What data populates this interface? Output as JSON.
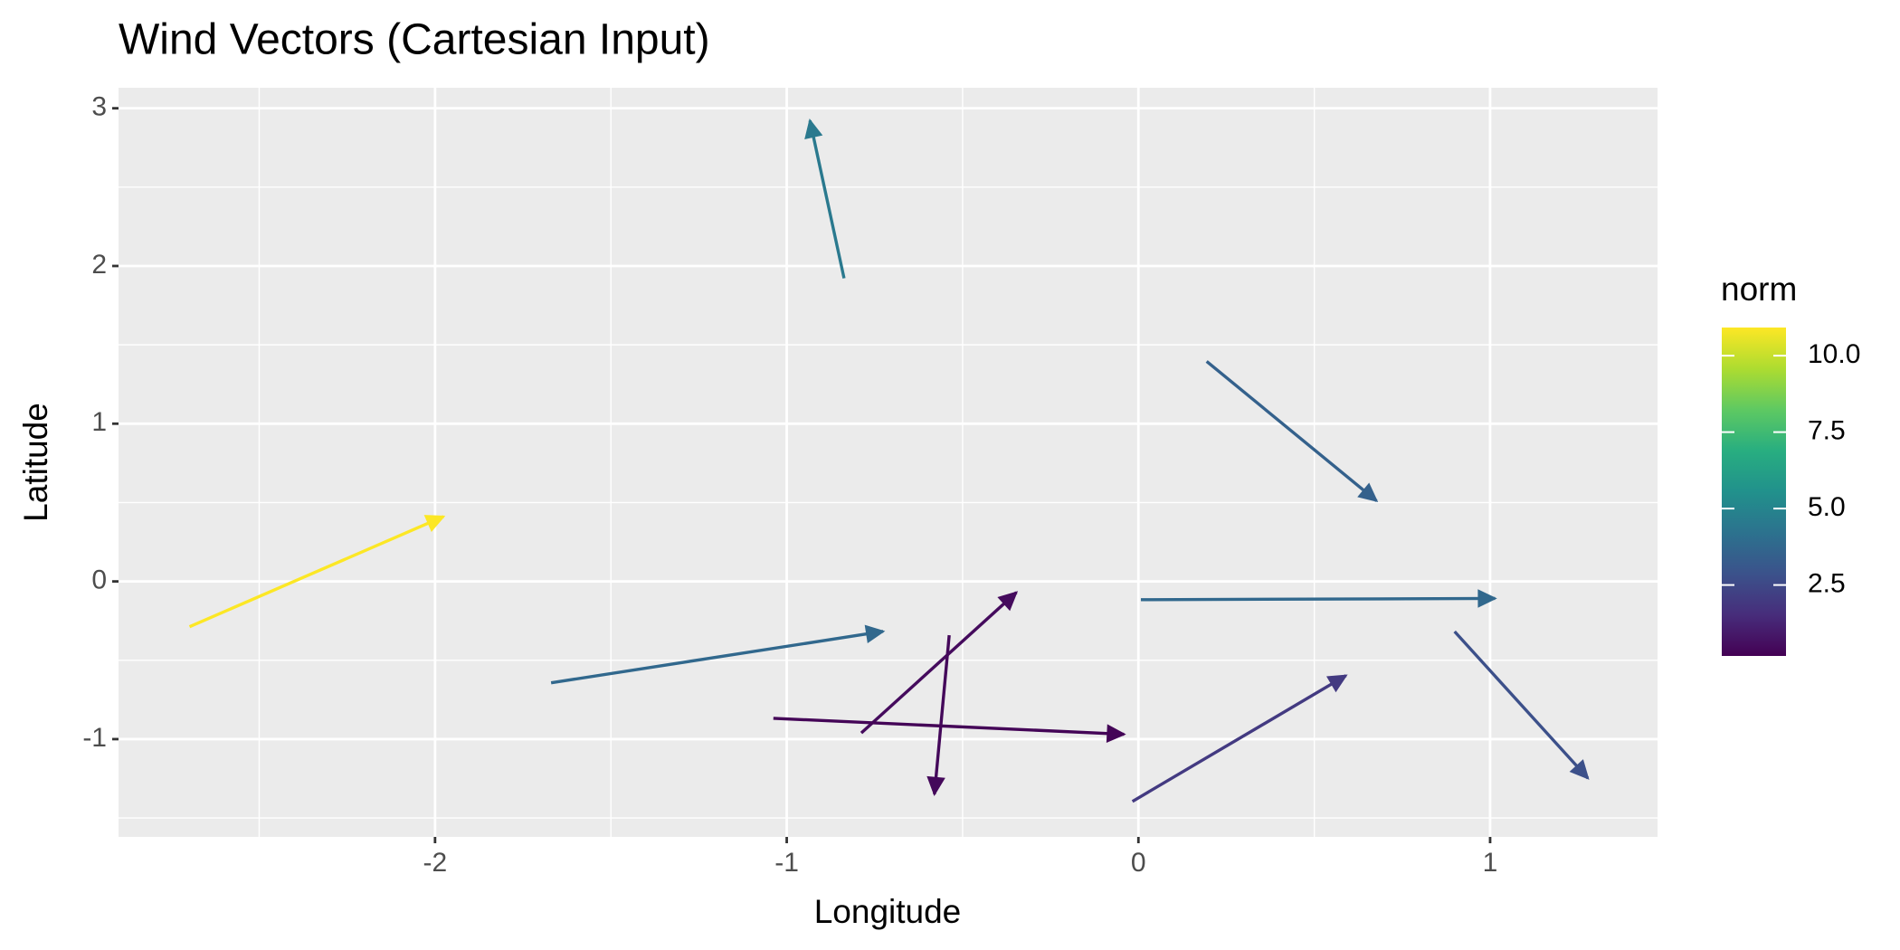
{
  "chart_data": {
    "type": "quiver",
    "title": "Wind Vectors (Cartesian Input)",
    "x_label": "Longitude",
    "y_label": "Latitude",
    "legend_title": "norm",
    "colormap": "viridis",
    "x": [
      -2.698,
      -0.837,
      0.194,
      0.007,
      -1.67,
      0.899,
      -0.017,
      -0.788,
      -0.538,
      -1.038
    ],
    "y": [
      -0.287,
      1.922,
      1.395,
      -0.116,
      -0.643,
      -0.318,
      -1.395,
      -0.961,
      -0.341,
      -0.868
    ],
    "u": [
      0.722,
      -0.097,
      0.483,
      1.007,
      0.944,
      0.379,
      0.607,
      0.441,
      -0.042,
      0.997
    ],
    "v": [
      0.698,
      1.0,
      -0.884,
      0.008,
      0.326,
      -0.93,
      0.798,
      0.891,
      -1.008,
      -0.101
    ],
    "norm": [
      10.9,
      4.5,
      3.5,
      3.8,
      3.8,
      2.8,
      2.0,
      0.5,
      0.4,
      0.3
    ],
    "xlim": [
      -2.9,
      1.476
    ],
    "ylim": [
      -1.62,
      3.13
    ],
    "xticks": [
      -2,
      -1,
      0,
      1
    ],
    "yticks": [
      -1,
      0,
      1,
      2,
      3
    ],
    "xminor": [
      -2.5,
      -1.5,
      -0.5,
      0.5
    ],
    "yminor": [
      -1.5,
      -0.5,
      0.5,
      1.5,
      2.5
    ],
    "colorlim": [
      0.18,
      10.92
    ],
    "colorticks": [
      {
        "value": 2.5,
        "label": "2.5"
      },
      {
        "value": 5,
        "label": "5.0"
      },
      {
        "value": 7.5,
        "label": "7.5"
      },
      {
        "value": 10,
        "label": "10.0"
      }
    ],
    "grid": true
  }
}
